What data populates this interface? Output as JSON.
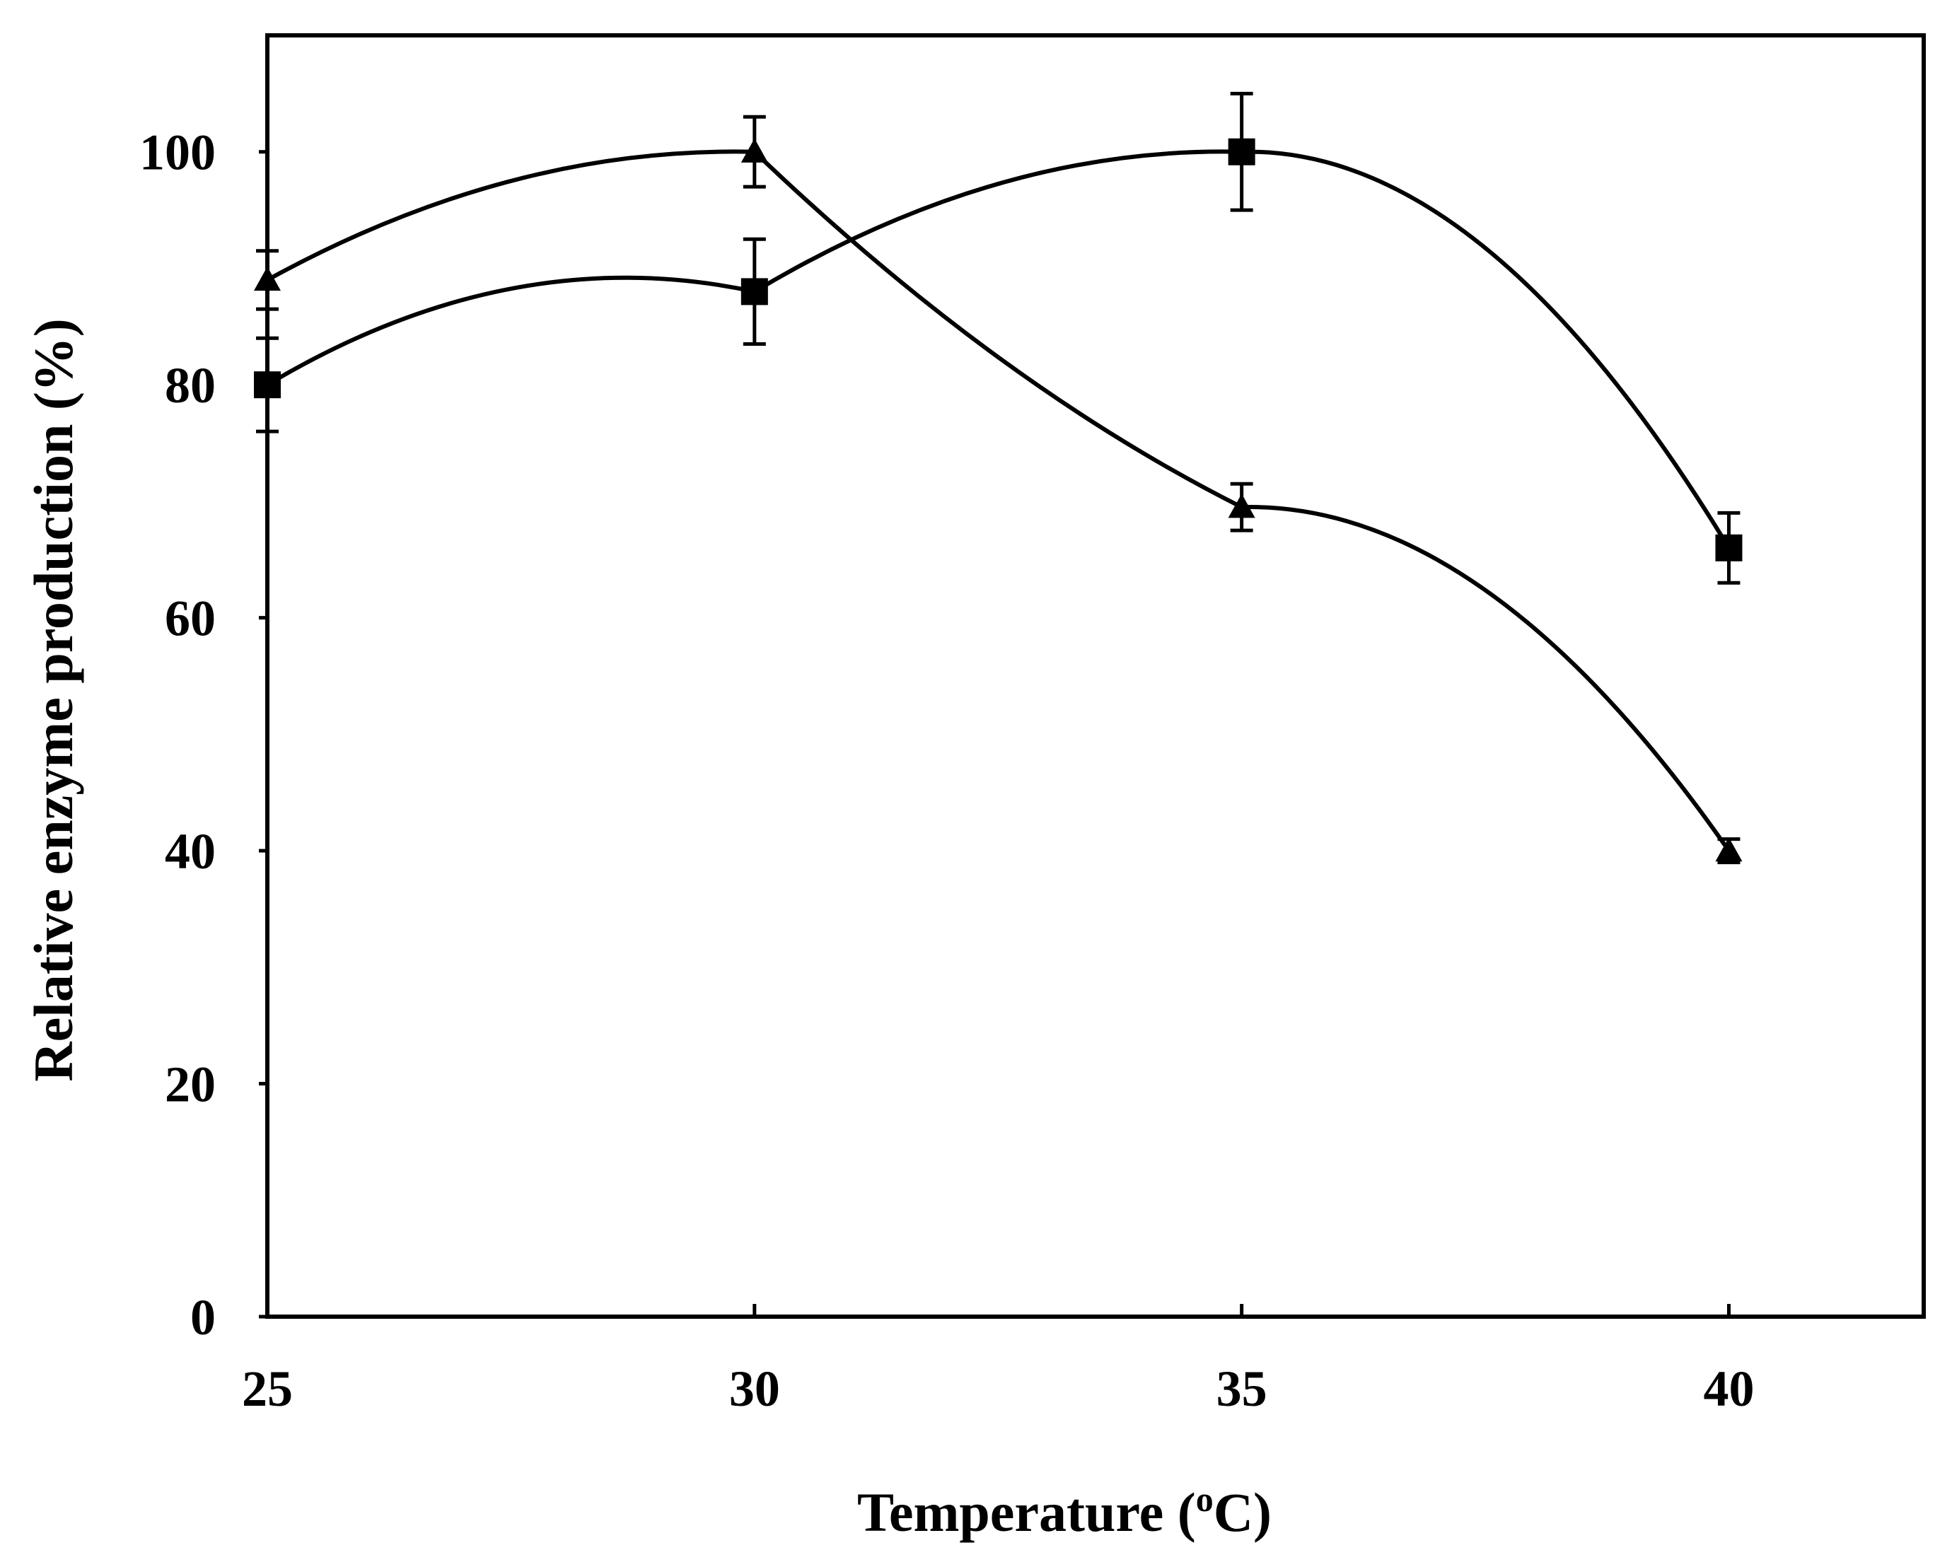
{
  "chart_data": {
    "type": "line",
    "title": "",
    "xlabel": {
      "prefix": "Temperature (",
      "sup": "o",
      "suffix": "C)"
    },
    "ylabel": "Relative enzyme production (%)",
    "x": [
      25,
      30,
      35,
      40
    ],
    "xlim": [
      25,
      42
    ],
    "ylim": [
      0,
      110
    ],
    "xticks": [
      25,
      30,
      35,
      40
    ],
    "xtick_labels": [
      "25",
      "30",
      "35",
      "40"
    ],
    "yticks": [
      0,
      20,
      40,
      60,
      80,
      100
    ],
    "ytick_labels": [
      "0",
      "20",
      "40",
      "60",
      "80",
      "100"
    ],
    "grid": false,
    "line_color": "#000000",
    "series": [
      {
        "name": "triangle-series",
        "marker": "triangle",
        "values": [
          89,
          100,
          69.5,
          40
        ],
        "errors": [
          2.5,
          3,
          2,
          1
        ],
        "curve_control_y": [
          100.5,
          100.5,
          80,
          70
        ]
      },
      {
        "name": "square-series",
        "marker": "square",
        "values": [
          80,
          88,
          100,
          66
        ],
        "errors": [
          4,
          4.5,
          5,
          3
        ],
        "curve_control_y": [
          83,
          92.5,
          100.5,
          100.5
        ]
      }
    ]
  }
}
